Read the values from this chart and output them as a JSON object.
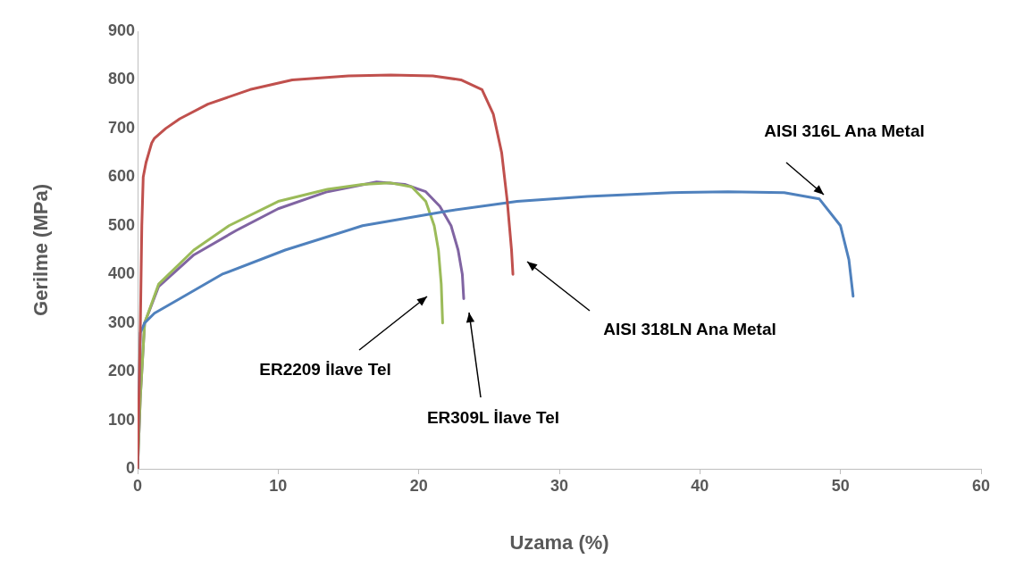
{
  "chart_data": {
    "type": "line",
    "xlabel": "Uzama (%)",
    "ylabel": "Gerilme (MPa)",
    "xlim": [
      0,
      60
    ],
    "xticks": [
      0,
      10,
      20,
      30,
      40,
      50,
      60
    ],
    "ylim": [
      0,
      900
    ],
    "yticks": [
      0,
      100,
      200,
      300,
      400,
      500,
      600,
      700,
      800,
      900
    ],
    "grid": false,
    "legend": false,
    "marker": "none",
    "line_style": "solid",
    "series": [
      {
        "color": "#c0504d",
        "x": [
          0,
          0.2,
          0.3,
          0.4,
          0.6,
          0.8,
          1,
          1.2,
          2,
          3,
          5,
          8,
          11,
          15,
          18,
          21,
          23,
          24.5,
          25.3,
          25.9,
          26.3,
          26.6,
          26.7
        ],
        "values": [
          0,
          300,
          500,
          600,
          630,
          650,
          670,
          680,
          700,
          720,
          750,
          780,
          800,
          808,
          810,
          808,
          800,
          780,
          730,
          650,
          550,
          450,
          400
        ]
      },
      {
        "color": "#4f81bd",
        "x": [
          0,
          0.1,
          0.2,
          0.5,
          1.2,
          3,
          6,
          10.5,
          16,
          22,
          27,
          32,
          38,
          42,
          46,
          48.5,
          50,
          50.6,
          50.9
        ],
        "values": [
          0,
          150,
          280,
          300,
          320,
          350,
          400,
          450,
          500,
          530,
          550,
          560,
          568,
          570,
          568,
          555,
          500,
          430,
          355
        ]
      },
      {
        "color": "#9bbb59",
        "x": [
          0,
          0.2,
          0.5,
          1.5,
          4,
          6.5,
          10,
          13.5,
          16,
          18,
          19.5,
          20.5,
          21.1,
          21.4,
          21.6,
          21.7
        ],
        "values": [
          0,
          150,
          300,
          380,
          450,
          500,
          550,
          575,
          585,
          588,
          580,
          550,
          500,
          450,
          380,
          300
        ]
      },
      {
        "color": "#8064a2",
        "x": [
          0,
          0.2,
          0.5,
          1.5,
          4,
          7,
          10,
          13.5,
          17,
          19,
          20.5,
          21.5,
          22.3,
          22.8,
          23.1,
          23.2
        ],
        "values": [
          0,
          150,
          300,
          375,
          440,
          490,
          535,
          570,
          590,
          585,
          570,
          540,
          500,
          450,
          400,
          350
        ]
      }
    ],
    "annotations": [
      "AISI 316L Ana Metal",
      "AISI 318LN Ana Metal",
      "ER2209 İlave Tel",
      "ER309L İlave Tel"
    ]
  }
}
